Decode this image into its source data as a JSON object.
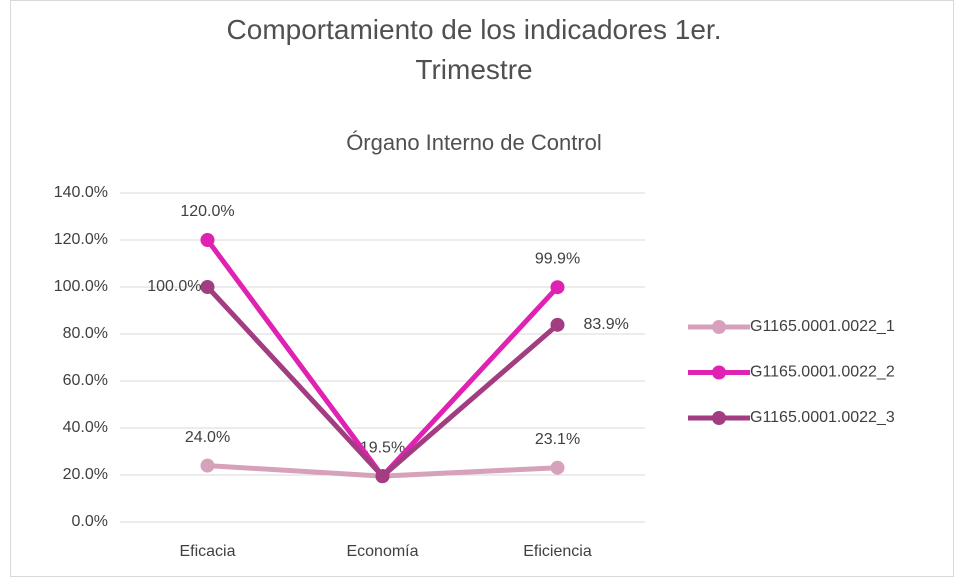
{
  "chart_data": {
    "type": "line",
    "title": "Comportamiento de los indicadores 1er. Trimestre",
    "subtitle": "Órgano Interno de Control",
    "categories": [
      "Eficacia",
      "Economía",
      "Eficiencia"
    ],
    "series": [
      {
        "name": "G1165.0001.0022_1",
        "color": "#d7a1bb",
        "values": [
          24.0,
          19.5,
          23.1
        ],
        "value_labels": [
          "24.0%",
          "19.5%",
          "23.1%"
        ]
      },
      {
        "name": "G1165.0001.0022_2",
        "color": "#e022b2",
        "values": [
          120.0,
          19.5,
          99.9
        ],
        "value_labels": [
          "120.0%",
          null,
          "99.9%"
        ]
      },
      {
        "name": "G1165.0001.0022_3",
        "color": "#a23d82",
        "values": [
          100.0,
          19.5,
          83.9
        ],
        "value_labels": [
          "100.0%",
          null,
          "83.9%"
        ]
      }
    ],
    "ylim": [
      0,
      140
    ],
    "yticks": [
      {
        "value": 0,
        "label": "0.0%"
      },
      {
        "value": 20,
        "label": "20.0%"
      },
      {
        "value": 40,
        "label": "40.0%"
      },
      {
        "value": 60,
        "label": "60.0%"
      },
      {
        "value": 80,
        "label": "80.0%"
      },
      {
        "value": 100,
        "label": "100.0%"
      },
      {
        "value": 120,
        "label": "120.0%"
      },
      {
        "value": 140,
        "label": "140.0%"
      }
    ],
    "grid": true,
    "legend": "right"
  }
}
